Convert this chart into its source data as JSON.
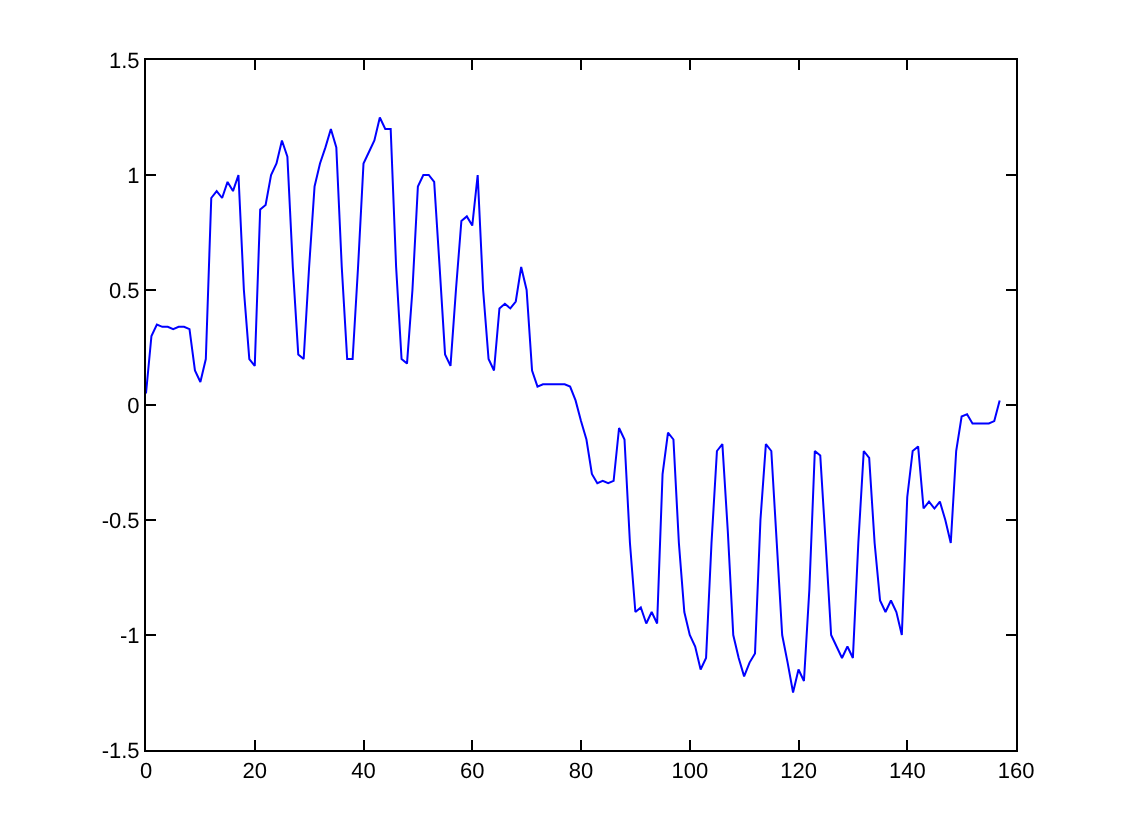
{
  "chart_data": {
    "type": "line",
    "x": [
      0,
      1,
      2,
      3,
      4,
      5,
      6,
      7,
      8,
      9,
      10,
      11,
      12,
      13,
      14,
      15,
      16,
      17,
      18,
      19,
      20,
      21,
      22,
      23,
      24,
      25,
      26,
      27,
      28,
      29,
      30,
      31,
      32,
      33,
      34,
      35,
      36,
      37,
      38,
      39,
      40,
      41,
      42,
      43,
      44,
      45,
      46,
      47,
      48,
      49,
      50,
      51,
      52,
      53,
      54,
      55,
      56,
      57,
      58,
      59,
      60,
      61,
      62,
      63,
      64,
      65,
      66,
      67,
      68,
      69,
      70,
      71,
      72,
      73,
      74,
      75,
      76,
      77,
      78,
      79,
      80,
      81,
      82,
      83,
      84,
      85,
      86,
      87,
      88,
      89,
      90,
      91,
      92,
      93,
      94,
      95,
      96,
      97,
      98,
      99,
      100,
      101,
      102,
      103,
      104,
      105,
      106,
      107,
      108,
      109,
      110,
      111,
      112,
      113,
      114,
      115,
      116,
      117,
      118,
      119,
      120,
      121,
      122,
      123,
      124,
      125,
      126,
      127,
      128,
      129,
      130,
      131,
      132,
      133,
      134,
      135,
      136,
      137,
      138,
      139,
      140,
      141,
      142,
      143,
      144,
      145,
      146,
      147,
      148,
      149,
      150,
      151,
      152,
      153,
      154,
      155,
      156,
      157
    ],
    "series": [
      {
        "color": "#0000ff",
        "values": [
          0.05,
          0.3,
          0.35,
          0.34,
          0.34,
          0.33,
          0.34,
          0.34,
          0.33,
          0.15,
          0.1,
          0.2,
          0.9,
          0.93,
          0.9,
          0.97,
          0.93,
          1.0,
          0.5,
          0.2,
          0.17,
          0.85,
          0.87,
          1.0,
          1.05,
          1.15,
          1.08,
          0.6,
          0.22,
          0.2,
          0.6,
          0.95,
          1.05,
          1.12,
          1.2,
          1.12,
          0.6,
          0.2,
          0.2,
          0.6,
          1.05,
          1.1,
          1.15,
          1.25,
          1.2,
          1.2,
          0.6,
          0.2,
          0.18,
          0.5,
          0.95,
          1.0,
          1.0,
          0.97,
          0.6,
          0.22,
          0.17,
          0.5,
          0.8,
          0.82,
          0.78,
          1.0,
          0.5,
          0.2,
          0.15,
          0.42,
          0.44,
          0.42,
          0.45,
          0.6,
          0.5,
          0.15,
          0.08,
          0.09,
          0.09,
          0.09,
          0.09,
          0.09,
          0.08,
          0.02,
          -0.07,
          -0.15,
          -0.3,
          -0.34,
          -0.33,
          -0.34,
          -0.33,
          -0.1,
          -0.15,
          -0.6,
          -0.9,
          -0.88,
          -0.95,
          -0.9,
          -0.95,
          -0.3,
          -0.12,
          -0.15,
          -0.6,
          -0.9,
          -1.0,
          -1.05,
          -1.15,
          -1.1,
          -0.6,
          -0.2,
          -0.17,
          -0.55,
          -1.0,
          -1.1,
          -1.18,
          -1.12,
          -1.08,
          -0.5,
          -0.17,
          -0.2,
          -0.6,
          -1.0,
          -1.12,
          -1.25,
          -1.15,
          -1.2,
          -0.8,
          -0.2,
          -0.22,
          -0.6,
          -1.0,
          -1.05,
          -1.1,
          -1.05,
          -1.1,
          -0.6,
          -0.2,
          -0.23,
          -0.6,
          -0.85,
          -0.9,
          -0.85,
          -0.9,
          -1.0,
          -0.4,
          -0.2,
          -0.18,
          -0.45,
          -0.42,
          -0.45,
          -0.42,
          -0.5,
          -0.6,
          -0.2,
          -0.05,
          -0.04,
          -0.08,
          -0.08,
          -0.08,
          -0.08,
          -0.07,
          0.02
        ]
      }
    ],
    "xlim": [
      0,
      160
    ],
    "xticks": [
      0,
      20,
      40,
      60,
      80,
      100,
      120,
      140,
      160
    ],
    "ylim": [
      -1.5,
      1.5
    ],
    "yticks": [
      -1.5,
      -1,
      -0.5,
      0,
      0.5,
      1,
      1.5
    ],
    "grid": false,
    "marker": "none",
    "line_style": "solid"
  }
}
